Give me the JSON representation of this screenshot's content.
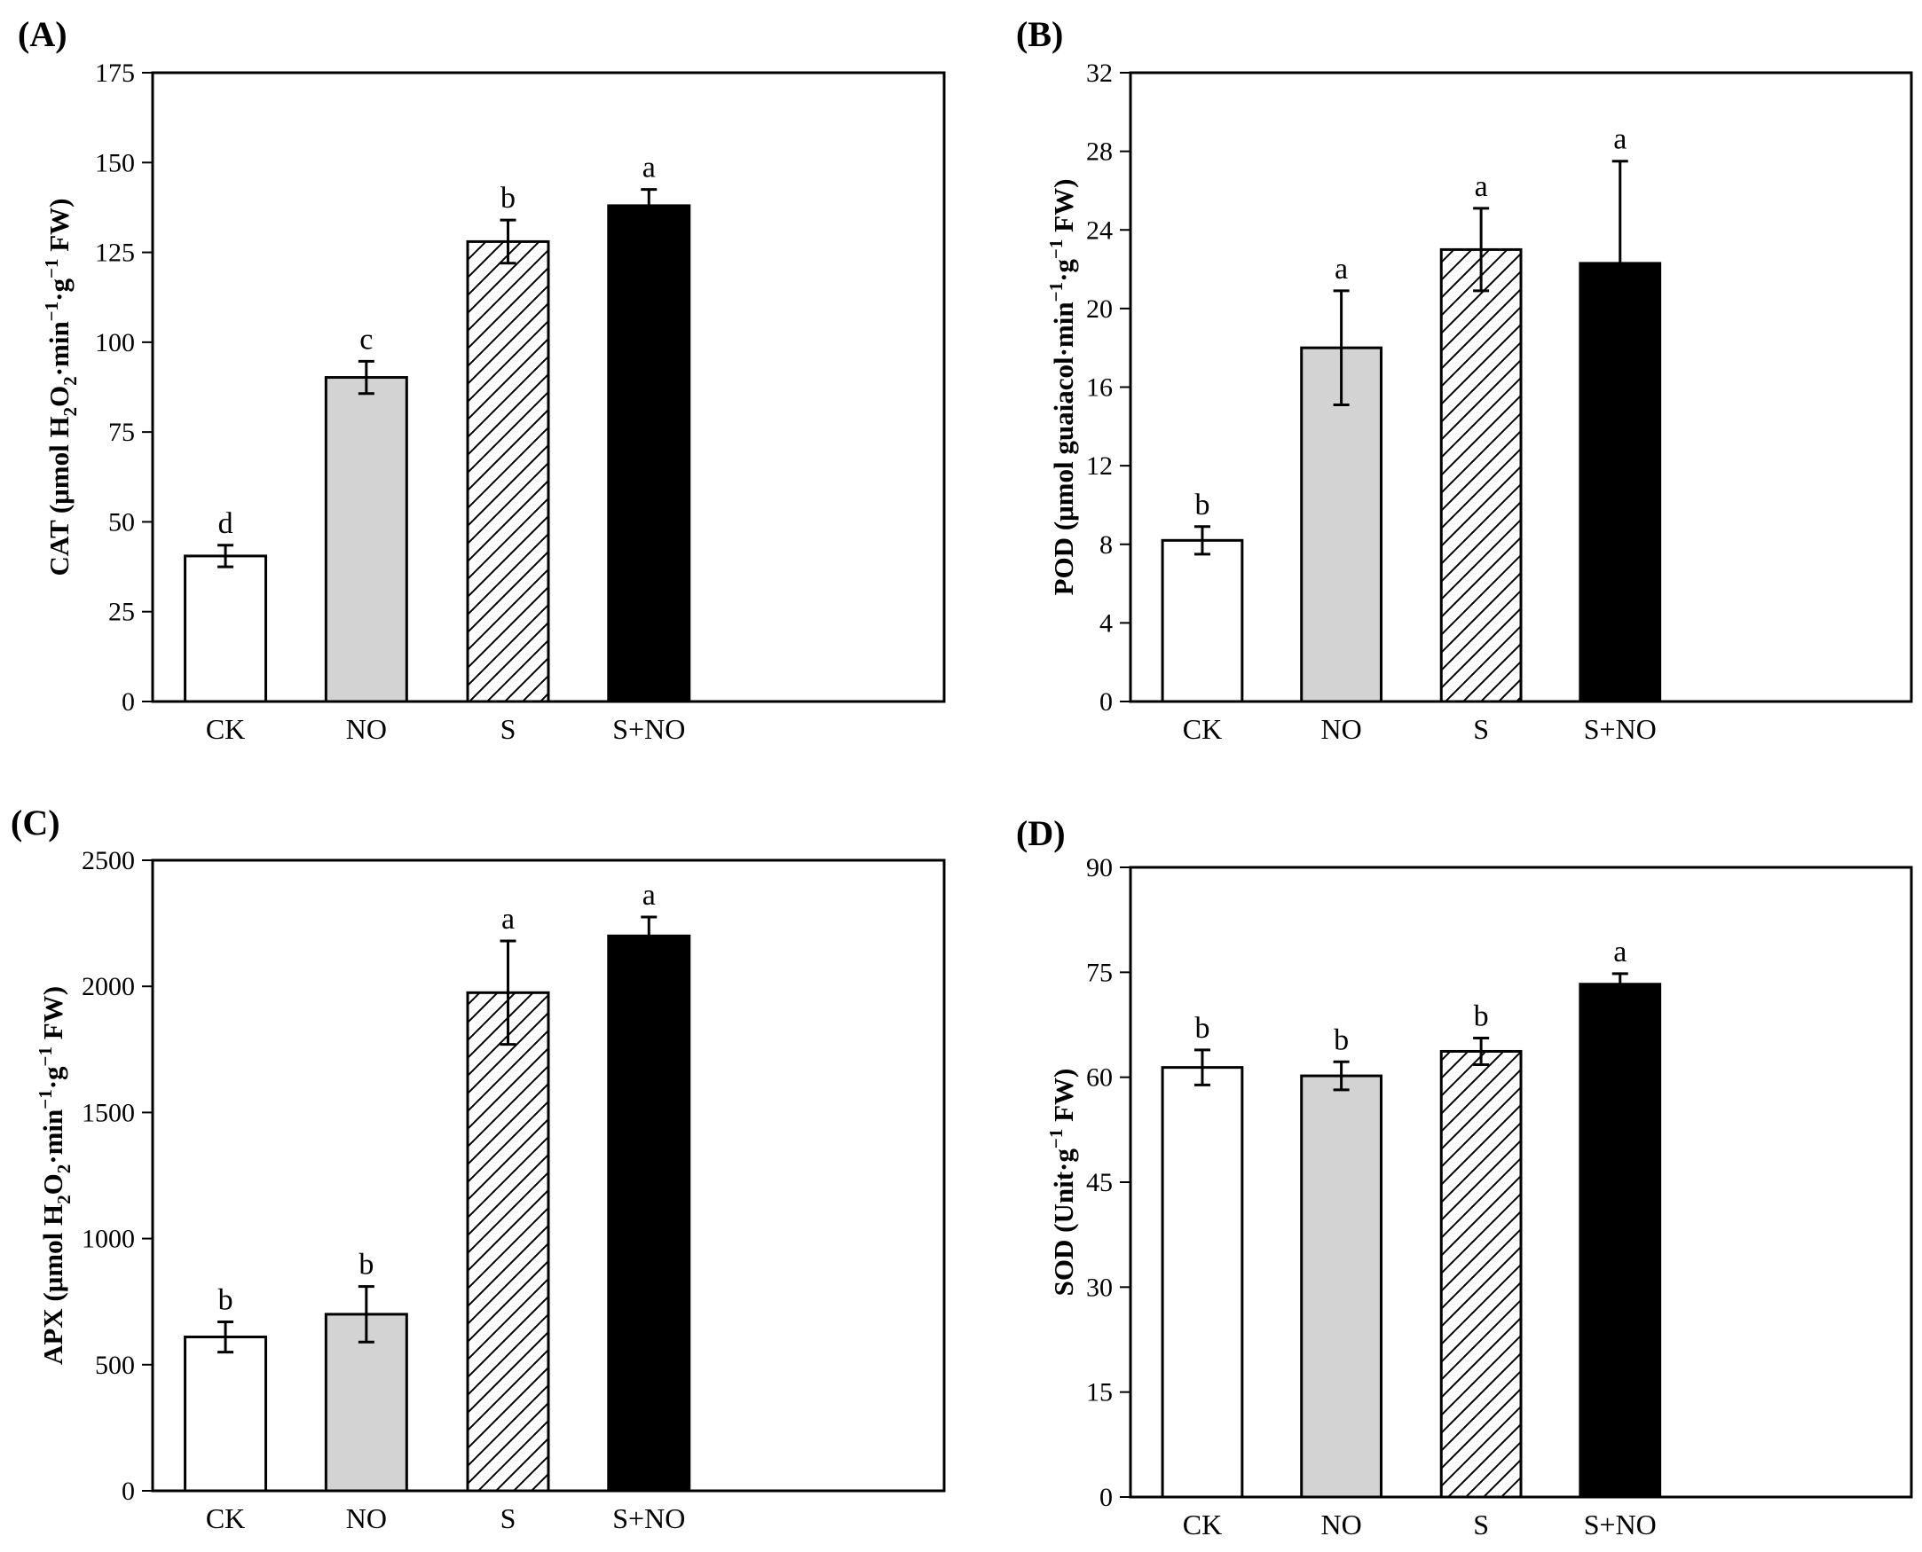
{
  "categories": [
    "CK",
    "NO",
    "S",
    "S+NO"
  ],
  "bar_styles": [
    {
      "name": "CK",
      "fill": "#ffffff",
      "pattern": "none"
    },
    {
      "name": "NO",
      "fill": "#d3d3d3",
      "pattern": "none"
    },
    {
      "name": "S",
      "fill": "#ffffff",
      "pattern": "hatch"
    },
    {
      "name": "S+NO",
      "fill": "#000000",
      "pattern": "none"
    }
  ],
  "chart_data": [
    {
      "type": "bar",
      "panel": "(A)",
      "ylabel": {
        "prefix": "CAT (μmol H",
        "sub1": "2",
        "mid1": "O",
        "sub2": "2",
        "mid2": "·min",
        "sup1": "−1",
        "mid3": "·g",
        "sup2": "−1",
        "suffix": " FW)"
      },
      "categories": [
        "CK",
        "NO",
        "S",
        "S+NO"
      ],
      "values": [
        40.5,
        90.2,
        128.0,
        138.0
      ],
      "errors": [
        3.0,
        4.5,
        6.0,
        4.5
      ],
      "letters": [
        "d",
        "c",
        "b",
        "a"
      ],
      "ylim": [
        0,
        175
      ],
      "yticks": [
        0,
        25,
        50,
        75,
        100,
        125,
        150,
        175
      ]
    },
    {
      "type": "bar",
      "panel": "(B)",
      "ylabel": {
        "prefix": "POD (μmol guaiacol·min",
        "sup1": "−1",
        "mid3": "·g",
        "sup2": "−1",
        "suffix": " FW)"
      },
      "categories": [
        "CK",
        "NO",
        "S",
        "S+NO"
      ],
      "values": [
        8.2,
        18.0,
        23.0,
        22.3
      ],
      "errors": [
        0.7,
        2.9,
        2.1,
        5.2
      ],
      "letters": [
        "b",
        "a",
        "a",
        "a"
      ],
      "ylim": [
        0,
        32
      ],
      "yticks": [
        0,
        4,
        8,
        12,
        16,
        20,
        24,
        28,
        32
      ]
    },
    {
      "type": "bar",
      "panel": "(C)",
      "ylabel": {
        "prefix": "APX (μmol H",
        "sub1": "2",
        "mid1": "O",
        "sub2": "2",
        "mid2": "·min",
        "sup1": "−1",
        "mid3": "·g",
        "sup2": "−1",
        "suffix": " FW)"
      },
      "categories": [
        "CK",
        "NO",
        "S",
        "S+NO"
      ],
      "values": [
        610,
        700,
        1975,
        2200
      ],
      "errors": [
        60,
        110,
        205,
        75
      ],
      "letters": [
        "b",
        "b",
        "a",
        "a"
      ],
      "ylim": [
        0,
        2500
      ],
      "yticks": [
        0,
        500,
        1000,
        1500,
        2000,
        2500
      ]
    },
    {
      "type": "bar",
      "panel": "(D)",
      "ylabel": {
        "prefix": "SOD (Unit·g",
        "sup2": "−1",
        "suffix": " FW)"
      },
      "categories": [
        "CK",
        "NO",
        "S",
        "S+NO"
      ],
      "values": [
        61.4,
        60.2,
        63.7,
        73.3
      ],
      "errors": [
        2.5,
        2.0,
        1.9,
        1.5
      ],
      "letters": [
        "b",
        "b",
        "b",
        "a"
      ],
      "ylim": [
        0,
        90
      ],
      "yticks": [
        0,
        15,
        30,
        45,
        60,
        75,
        90
      ]
    }
  ]
}
